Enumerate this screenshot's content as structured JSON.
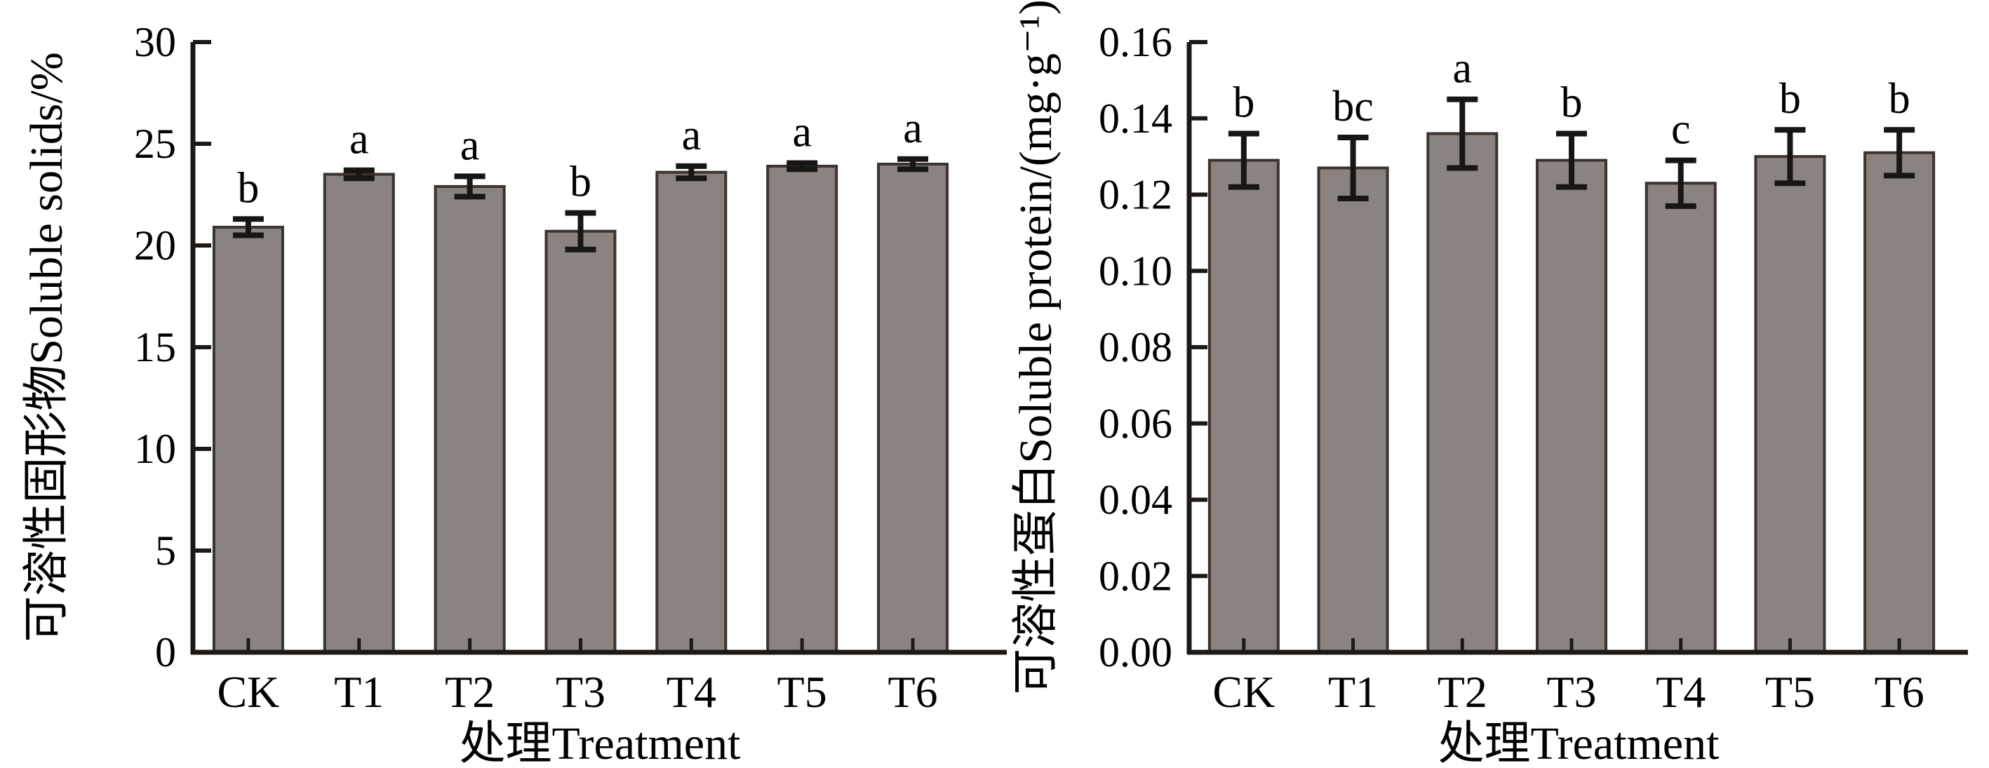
{
  "figure": {
    "description": "Two-panel bar chart figure comparing treatments CK and T1-T6",
    "panels": [
      "soluble-solids",
      "soluble-protein"
    ]
  },
  "style": {
    "background": "#ffffff",
    "bar_fill": "#8b8380",
    "bar_stroke": "#3a3330",
    "axis_color": "#1c1917",
    "error_color": "#181614",
    "text_color": "#000000"
  },
  "chart_data": [
    {
      "type": "bar",
      "panel": "left",
      "title": "",
      "categories": [
        "CK",
        "T1",
        "T2",
        "T3",
        "T4",
        "T5",
        "T6"
      ],
      "values": [
        20.9,
        23.5,
        22.9,
        20.7,
        23.6,
        23.9,
        24.0
      ],
      "errors": [
        0.4,
        0.2,
        0.5,
        0.9,
        0.3,
        0.15,
        0.25
      ],
      "sig_letters": [
        "b",
        "a",
        "a",
        "b",
        "a",
        "a",
        "a"
      ],
      "ylabel": "可溶性固形物Soluble solids/%",
      "xlabel": "处理Treatment",
      "ylim": [
        0,
        30
      ],
      "ytick_step": 5,
      "ytick_labels": [
        "0",
        "5",
        "10",
        "15",
        "20",
        "25",
        "30"
      ],
      "grid": false,
      "legend": "none",
      "error_bars": "both-directions",
      "tick_direction": "in"
    },
    {
      "type": "bar",
      "panel": "right",
      "title": "",
      "categories": [
        "CK",
        "T1",
        "T2",
        "T3",
        "T4",
        "T5",
        "T6"
      ],
      "values": [
        0.129,
        0.127,
        0.136,
        0.129,
        0.123,
        0.13,
        0.131
      ],
      "errors": [
        0.007,
        0.008,
        0.009,
        0.007,
        0.006,
        0.007,
        0.006
      ],
      "sig_letters": [
        "b",
        "bc",
        "a",
        "b",
        "c",
        "b",
        "b"
      ],
      "ylabel": "可溶性蛋白Soluble protein/(mg·g⁻¹)",
      "xlabel": "处理Treatment",
      "ylim": [
        0,
        0.16
      ],
      "ytick_step": 0.02,
      "ytick_labels": [
        "0.00",
        "0.02",
        "0.04",
        "0.06",
        "0.08",
        "0.10",
        "0.12",
        "0.14",
        "0.16"
      ],
      "grid": false,
      "legend": "none",
      "error_bars": "both-directions",
      "tick_direction": "in"
    }
  ]
}
